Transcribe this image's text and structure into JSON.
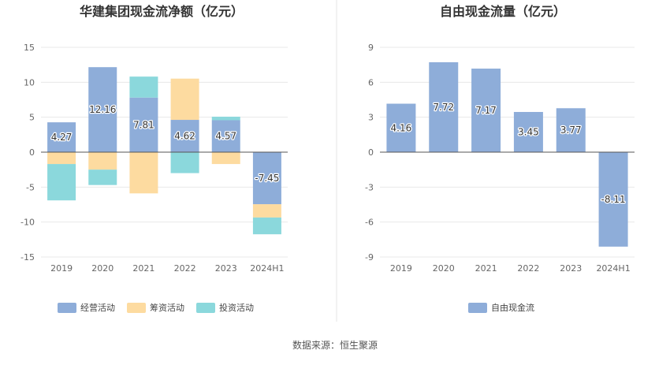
{
  "chart_data": [
    {
      "type": "bar",
      "stacked": true,
      "title": "华建集团现金流净额（亿元）",
      "categories": [
        "2019",
        "2020",
        "2021",
        "2022",
        "2023",
        "2024H1"
      ],
      "ylim": [
        -15,
        15
      ],
      "yticks": [
        15,
        10,
        5,
        0,
        -5,
        -10,
        -15
      ],
      "grid": true,
      "legend_position": "bottom",
      "series": [
        {
          "name": "经营活动",
          "color": "#8eadd9",
          "values": [
            4.27,
            12.16,
            7.81,
            4.62,
            4.57,
            -7.45
          ],
          "labels": [
            "4.27",
            "12.16",
            "7.81",
            "4.62",
            "4.57",
            "-7.45"
          ]
        },
        {
          "name": "筹资活动",
          "color": "#fddba0",
          "values": [
            -1.7,
            -2.5,
            -5.9,
            5.9,
            -1.7,
            -1.9
          ]
        },
        {
          "name": "投资活动",
          "color": "#8bd8dc",
          "values": [
            -5.2,
            -2.2,
            3.0,
            -3.0,
            0.5,
            -2.4
          ]
        }
      ]
    },
    {
      "type": "bar",
      "title": "自由现金流量（亿元）",
      "categories": [
        "2019",
        "2020",
        "2021",
        "2022",
        "2023",
        "2024H1"
      ],
      "ylim": [
        -9,
        9
      ],
      "yticks": [
        9,
        6,
        3,
        0,
        -3,
        -6,
        -9
      ],
      "grid": true,
      "legend_position": "bottom",
      "series": [
        {
          "name": "自由现金流",
          "color": "#8eadd9",
          "values": [
            4.16,
            7.72,
            7.17,
            3.45,
            3.77,
            -8.11
          ],
          "labels": [
            "4.16",
            "7.72",
            "7.17",
            "3.45",
            "3.77",
            "-8.11"
          ]
        }
      ]
    }
  ],
  "footer": {
    "source": "数据来源：恒生聚源"
  },
  "colors": {
    "divider": "#e6e6e6",
    "grid": "#e8e8e8",
    "axis": "#555555"
  }
}
